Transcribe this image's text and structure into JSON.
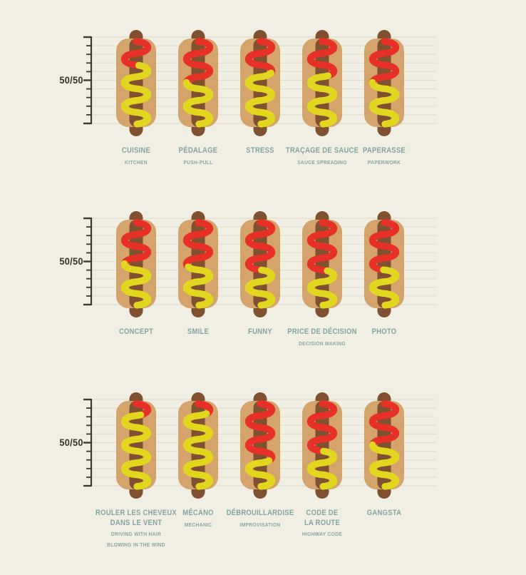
{
  "axis_label": "50/50",
  "colors": {
    "background": "#f1efe3",
    "gridline": "#e2dfd0",
    "axis": "#3e3a32",
    "bun": "#d4a46c",
    "sausage": "#7f5130",
    "ketchup": "#e73128",
    "mustard": "#e2d71f",
    "label_text": "#85a4a1",
    "axis_label_text": "#35322b"
  },
  "chart_data": {
    "type": "bar",
    "description": "Hot-dog infographic: each hot dog is a 100% stacked bar of ketchup (red, top) vs mustard (yellow, bottom); axis shows 50/50 midpoint",
    "axis": {
      "midpoint_label": "50/50",
      "tick_levels": 11,
      "grid": true
    },
    "rows": [
      {
        "items": [
          {
            "fr": "CUISINE",
            "en": "KITCHEN",
            "ketchup_pct": 30,
            "mustard_pct": 70
          },
          {
            "fr": "PÉDALAGE",
            "en": "PUSH-PULL",
            "ketchup_pct": 50,
            "mustard_pct": 50
          },
          {
            "fr": "STRESS",
            "en": "",
            "ketchup_pct": 37,
            "mustard_pct": 63
          },
          {
            "fr": "TRAÇAGE DE SAUCE",
            "en": "SAUCE SPREADING",
            "ketchup_pct": 40,
            "mustard_pct": 60
          },
          {
            "fr": "PAPERASSE",
            "en": "PAPERWORK",
            "ketchup_pct": 50,
            "mustard_pct": 50
          }
        ]
      },
      {
        "items": [
          {
            "fr": "CONCEPT",
            "en": "",
            "ketchup_pct": 50,
            "mustard_pct": 50
          },
          {
            "fr": "SMILE",
            "en": "",
            "ketchup_pct": 52,
            "mustard_pct": 48
          },
          {
            "fr": "FUNNY",
            "en": "",
            "ketchup_pct": 58,
            "mustard_pct": 42
          },
          {
            "fr": "PRICE DE DÉCISION",
            "en": "DECISION MAKING",
            "ketchup_pct": 60,
            "mustard_pct": 40
          },
          {
            "fr": "PHOTO",
            "en": "",
            "ketchup_pct": 57,
            "mustard_pct": 43
          }
        ]
      },
      {
        "items": [
          {
            "fr": "ROULER LES CHEVEUX\nDANS LE VENT",
            "en": "DRIVING WITH HAIR\nBLOWING IN THE WIND",
            "ketchup_pct": 12,
            "mustard_pct": 88
          },
          {
            "fr": "MÉCANO",
            "en": "MECHANIC",
            "ketchup_pct": 10,
            "mustard_pct": 90
          },
          {
            "fr": "DÉBROUILLARDISE",
            "en": "IMPROVISATION",
            "ketchup_pct": 67,
            "mustard_pct": 33
          },
          {
            "fr": "CODE DE\nLA ROUTE",
            "en": "HIGHWAY CODE",
            "ketchup_pct": 58,
            "mustard_pct": 42
          },
          {
            "fr": "GANGSTA",
            "en": "",
            "ketchup_pct": 50,
            "mustard_pct": 50
          }
        ]
      }
    ]
  }
}
